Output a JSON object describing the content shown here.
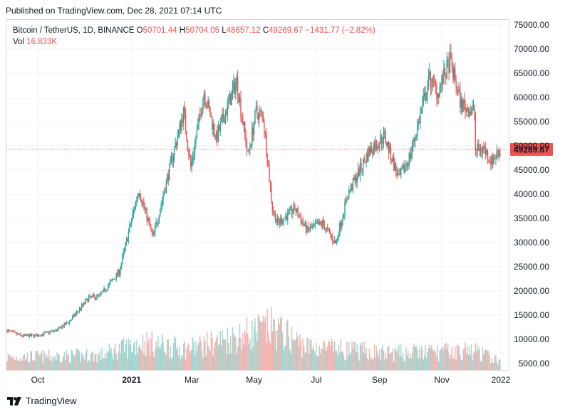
{
  "header": {
    "published": "Published on TradingView.com, Dec 28, 2021 07:14 UTC"
  },
  "legend": {
    "symbol": "Bitcoin / TetherUS, 1D, BINANCE",
    "o_label": "O",
    "o_value": "50701.44",
    "h_label": "H",
    "h_value": "50704.05",
    "l_label": "L",
    "l_value": "48657.12",
    "c_label": "C",
    "c_value": "49269.67",
    "change": "−1431.77 (−2.82%)",
    "vol_label": "Vol",
    "vol_value": "16.833K"
  },
  "footer": {
    "brand": "TradingView"
  },
  "colors": {
    "up": "#26a69a",
    "down": "#ef5350",
    "vol_up": "#9fd4ce",
    "vol_down": "#f4b0ae",
    "grid": "#f0f3fa"
  },
  "chart_data": {
    "type": "candlestick",
    "title": "Bitcoin / TetherUS, 1D, BINANCE",
    "y_ticks": [
      "75000.00",
      "70000.00",
      "65000.00",
      "60000.00",
      "55000.00",
      "50000.00",
      "45000.00",
      "40000.00",
      "35000.00",
      "30000.00",
      "25000.00",
      "20000.00",
      "15000.00",
      "10000.00",
      "5000.00"
    ],
    "y_range": [
      5000,
      75000
    ],
    "x_ticks": [
      "Oct",
      "2021",
      "Mar",
      "May",
      "Jul",
      "Sep",
      "Nov",
      "2022"
    ],
    "x_range": [
      "2020-09-01",
      "2021-12-31"
    ],
    "last_price": "49269.67",
    "price_path": [
      {
        "date": "2020-09-01",
        "price": 11800
      },
      {
        "date": "2020-09-15",
        "price": 10700
      },
      {
        "date": "2020-10-01",
        "price": 10800
      },
      {
        "date": "2020-10-20",
        "price": 11900
      },
      {
        "date": "2020-11-01",
        "price": 13700
      },
      {
        "date": "2020-11-20",
        "price": 18500
      },
      {
        "date": "2020-12-01",
        "price": 19000
      },
      {
        "date": "2020-12-20",
        "price": 24000
      },
      {
        "date": "2021-01-08",
        "price": 41000
      },
      {
        "date": "2021-01-22",
        "price": 31000
      },
      {
        "date": "2021-02-08",
        "price": 46000
      },
      {
        "date": "2021-02-21",
        "price": 57000
      },
      {
        "date": "2021-02-28",
        "price": 45500
      },
      {
        "date": "2021-03-13",
        "price": 61200
      },
      {
        "date": "2021-03-25",
        "price": 51500
      },
      {
        "date": "2021-04-14",
        "price": 63500
      },
      {
        "date": "2021-04-25",
        "price": 48000
      },
      {
        "date": "2021-05-03",
        "price": 57000
      },
      {
        "date": "2021-05-10",
        "price": 56000
      },
      {
        "date": "2021-05-19",
        "price": 37000
      },
      {
        "date": "2021-05-24",
        "price": 34000
      },
      {
        "date": "2021-06-10",
        "price": 37000
      },
      {
        "date": "2021-06-22",
        "price": 32500
      },
      {
        "date": "2021-07-07",
        "price": 34000
      },
      {
        "date": "2021-07-20",
        "price": 29800
      },
      {
        "date": "2021-08-01",
        "price": 40000
      },
      {
        "date": "2021-08-22",
        "price": 49000
      },
      {
        "date": "2021-09-06",
        "price": 52000
      },
      {
        "date": "2021-09-20",
        "price": 43000
      },
      {
        "date": "2021-10-01",
        "price": 48000
      },
      {
        "date": "2021-10-20",
        "price": 64000
      },
      {
        "date": "2021-10-28",
        "price": 61000
      },
      {
        "date": "2021-11-09",
        "price": 67500
      },
      {
        "date": "2021-11-20",
        "price": 58500
      },
      {
        "date": "2021-12-03",
        "price": 57000
      },
      {
        "date": "2021-12-04",
        "price": 49000
      },
      {
        "date": "2021-12-12",
        "price": 49500
      },
      {
        "date": "2021-12-20",
        "price": 46800
      },
      {
        "date": "2021-12-28",
        "price": 49269.67
      }
    ],
    "volume_path": [
      {
        "date": "2020-09-01",
        "volume": 60
      },
      {
        "date": "2020-12-01",
        "volume": 70
      },
      {
        "date": "2021-01-11",
        "volume": 130
      },
      {
        "date": "2021-02-25",
        "volume": 100
      },
      {
        "date": "2021-05-19",
        "volume": 200
      },
      {
        "date": "2021-06-22",
        "volume": 110
      },
      {
        "date": "2021-09-07",
        "volume": 80
      },
      {
        "date": "2021-12-04",
        "volume": 90
      },
      {
        "date": "2021-12-28",
        "volume": 40
      }
    ]
  }
}
